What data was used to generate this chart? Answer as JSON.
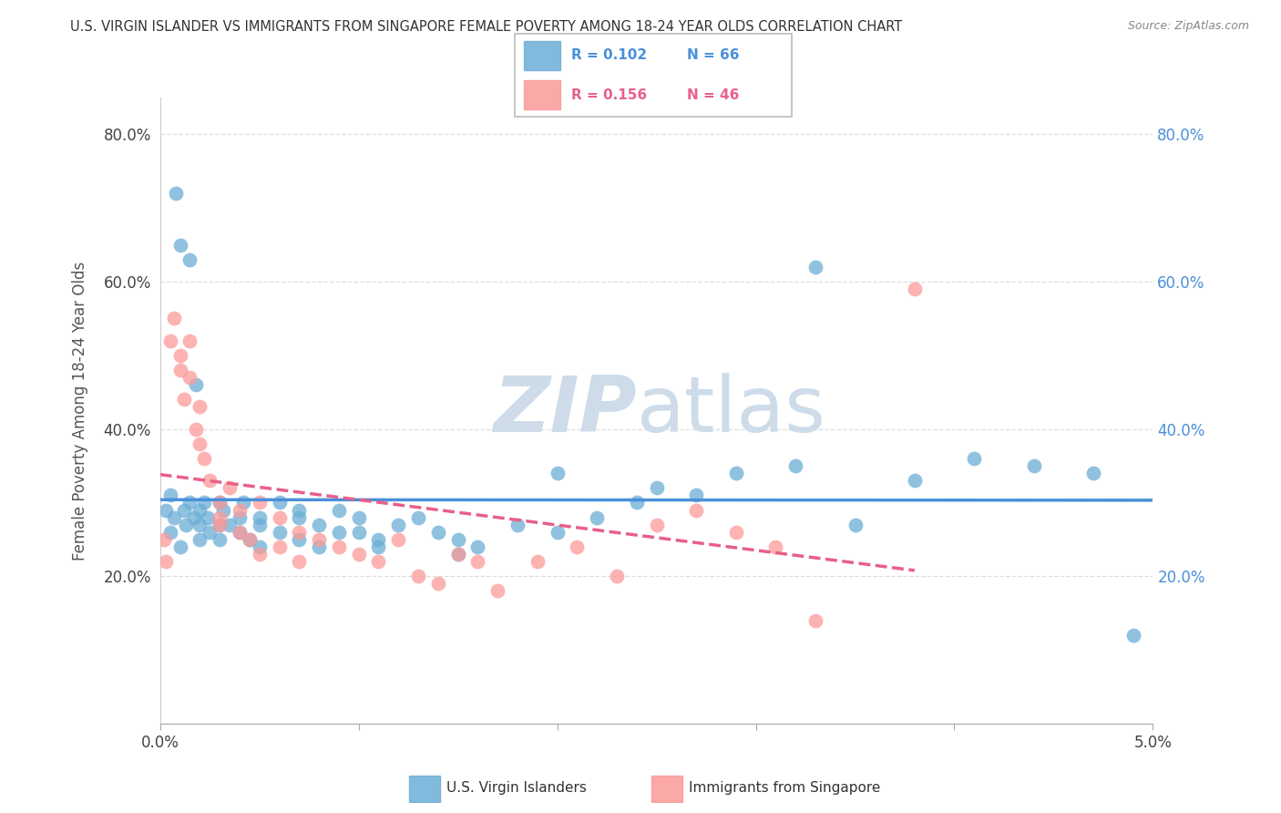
{
  "title": "U.S. VIRGIN ISLANDER VS IMMIGRANTS FROM SINGAPORE FEMALE POVERTY AMONG 18-24 YEAR OLDS CORRELATION CHART",
  "source": "Source: ZipAtlas.com",
  "ylabel": "Female Poverty Among 18-24 Year Olds",
  "xlim": [
    0.0,
    0.05
  ],
  "ylim": [
    0.0,
    0.85
  ],
  "xticks": [
    0.0,
    0.01,
    0.02,
    0.03,
    0.04,
    0.05
  ],
  "xticklabels": [
    "0.0%",
    "",
    "",
    "",
    "",
    "5.0%"
  ],
  "yticks": [
    0.0,
    0.2,
    0.4,
    0.6,
    0.8
  ],
  "yticklabels": [
    "",
    "20.0%",
    "40.0%",
    "60.0%",
    "80.0%"
  ],
  "series1_color": "#6baed6",
  "series2_color": "#fb9a99",
  "series1_label": "U.S. Virgin Islanders",
  "series2_label": "Immigrants from Singapore",
  "R1": "0.102",
  "N1": "66",
  "R2": "0.156",
  "N2": "46",
  "trendline1_color": "#4a90d9",
  "trendline2_color": "#e8608a",
  "watermark_color": "#cddce8",
  "background_color": "#ffffff",
  "scatter1_x": [
    0.0003,
    0.0005,
    0.0005,
    0.0007,
    0.0008,
    0.001,
    0.001,
    0.0012,
    0.0013,
    0.0015,
    0.0015,
    0.0017,
    0.0018,
    0.002,
    0.002,
    0.002,
    0.0022,
    0.0024,
    0.0025,
    0.003,
    0.003,
    0.003,
    0.0032,
    0.0035,
    0.004,
    0.004,
    0.0042,
    0.0045,
    0.005,
    0.005,
    0.005,
    0.006,
    0.006,
    0.007,
    0.007,
    0.007,
    0.008,
    0.008,
    0.009,
    0.009,
    0.01,
    0.01,
    0.011,
    0.011,
    0.012,
    0.013,
    0.014,
    0.015,
    0.015,
    0.016,
    0.018,
    0.02,
    0.022,
    0.024,
    0.025,
    0.027,
    0.029,
    0.032,
    0.035,
    0.038,
    0.041,
    0.044,
    0.047,
    0.049,
    0.02,
    0.033
  ],
  "scatter1_y": [
    0.29,
    0.26,
    0.31,
    0.28,
    0.72,
    0.65,
    0.24,
    0.29,
    0.27,
    0.63,
    0.3,
    0.28,
    0.46,
    0.29,
    0.27,
    0.25,
    0.3,
    0.28,
    0.26,
    0.3,
    0.27,
    0.25,
    0.29,
    0.27,
    0.28,
    0.26,
    0.3,
    0.25,
    0.28,
    0.24,
    0.27,
    0.26,
    0.3,
    0.29,
    0.28,
    0.25,
    0.27,
    0.24,
    0.26,
    0.29,
    0.26,
    0.28,
    0.25,
    0.24,
    0.27,
    0.28,
    0.26,
    0.25,
    0.23,
    0.24,
    0.27,
    0.26,
    0.28,
    0.3,
    0.32,
    0.31,
    0.34,
    0.35,
    0.27,
    0.33,
    0.36,
    0.35,
    0.34,
    0.12,
    0.34,
    0.62
  ],
  "scatter2_x": [
    0.0002,
    0.0003,
    0.0005,
    0.0007,
    0.001,
    0.001,
    0.0012,
    0.0015,
    0.0015,
    0.0018,
    0.002,
    0.002,
    0.0022,
    0.0025,
    0.003,
    0.003,
    0.003,
    0.0035,
    0.004,
    0.004,
    0.0045,
    0.005,
    0.005,
    0.006,
    0.006,
    0.007,
    0.007,
    0.008,
    0.009,
    0.01,
    0.011,
    0.012,
    0.013,
    0.014,
    0.015,
    0.016,
    0.017,
    0.019,
    0.021,
    0.023,
    0.025,
    0.027,
    0.029,
    0.031,
    0.033,
    0.038
  ],
  "scatter2_y": [
    0.25,
    0.22,
    0.52,
    0.55,
    0.5,
    0.48,
    0.44,
    0.47,
    0.52,
    0.4,
    0.43,
    0.38,
    0.36,
    0.33,
    0.3,
    0.28,
    0.27,
    0.32,
    0.29,
    0.26,
    0.25,
    0.3,
    0.23,
    0.28,
    0.24,
    0.26,
    0.22,
    0.25,
    0.24,
    0.23,
    0.22,
    0.25,
    0.2,
    0.19,
    0.23,
    0.22,
    0.18,
    0.22,
    0.24,
    0.2,
    0.27,
    0.29,
    0.26,
    0.24,
    0.14,
    0.59
  ]
}
